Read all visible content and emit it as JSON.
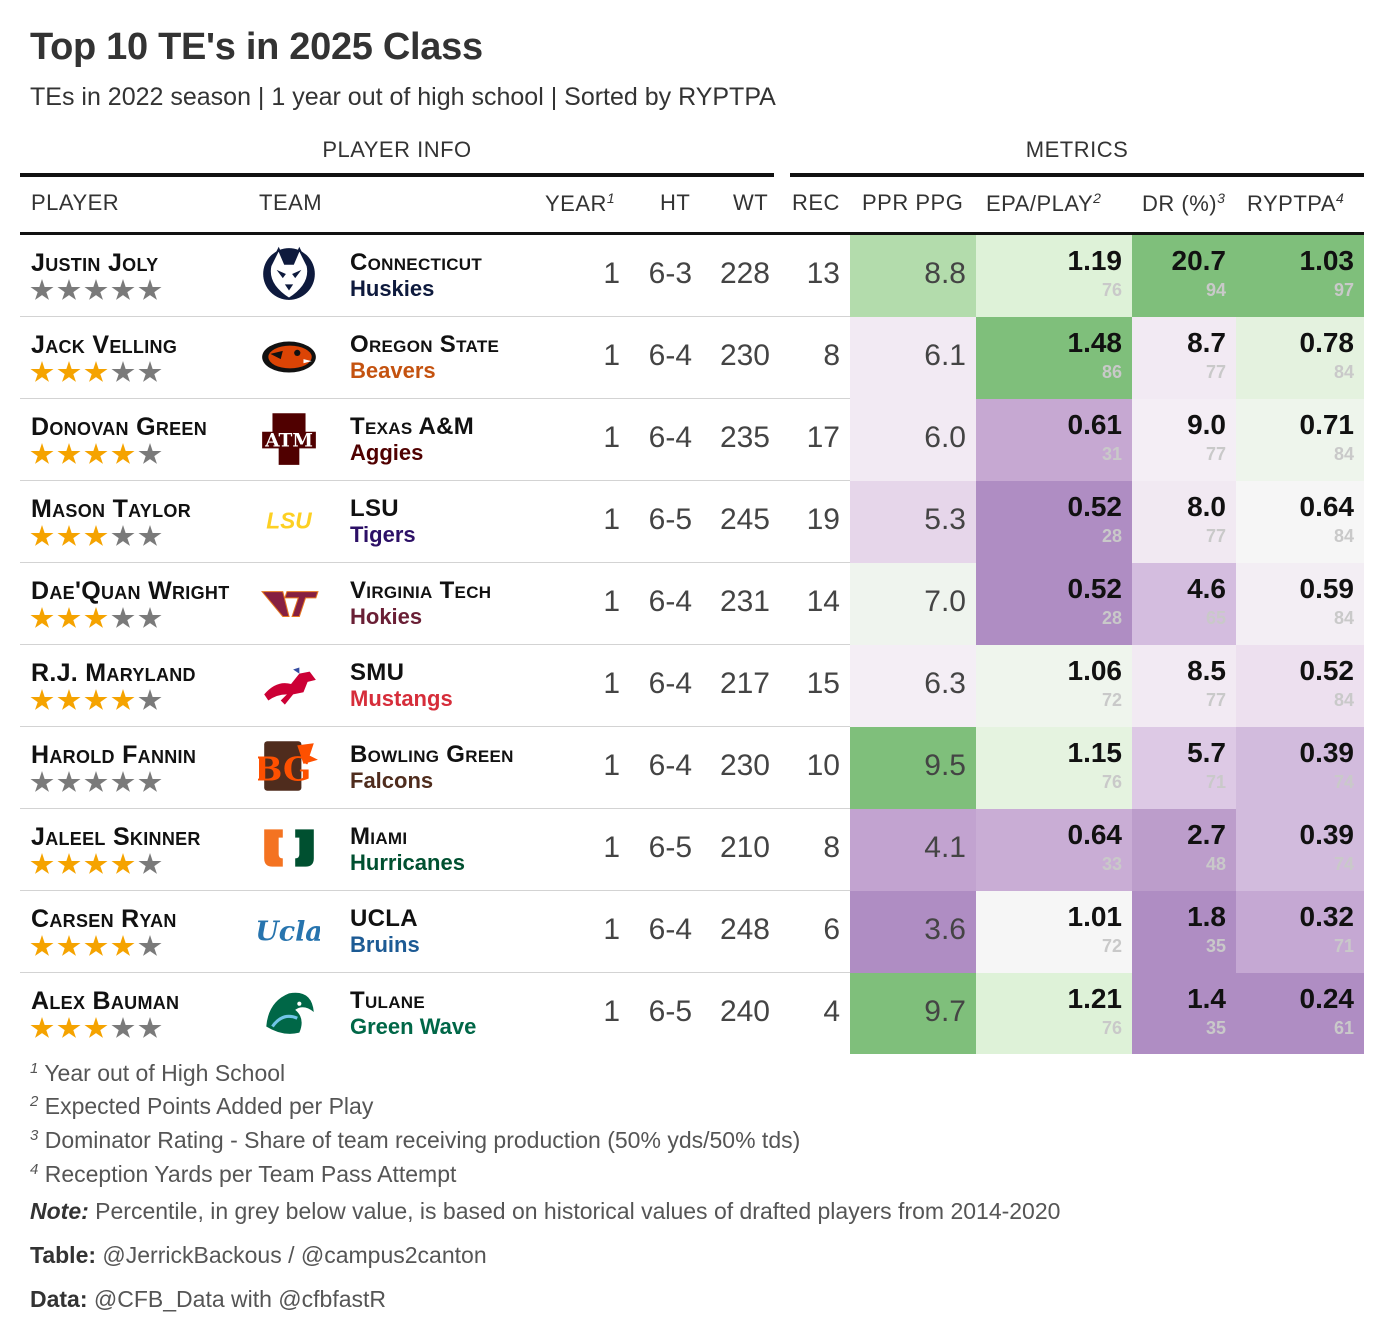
{
  "title": "Top 10 TE's in 2025 Class",
  "subtitle": "TEs in 2022 season | 1 year out of high school | Sorted by RYPTPA",
  "spanners": {
    "player_info": "PLAYER INFO",
    "metrics": "METRICS"
  },
  "columns": {
    "player": "PLAYER",
    "team": "TEAM",
    "year": "YEAR",
    "year_note": "1",
    "ht": "HT",
    "wt": "WT",
    "rec": "REC",
    "ppr": "PPR PPG",
    "epa": "EPA/PLAY",
    "epa_note": "2",
    "dr": "DR (%)",
    "dr_note": "3",
    "ryptpa": "RYPTPA",
    "ryptpa_note": "4"
  },
  "colors": {
    "green_dark": "#7fbf7b",
    "green_mid": "#b3dcac",
    "green_light": "#def2d8",
    "neutral": "#f5f5f5",
    "purple_light": "#ede0ef",
    "purple_mid": "#cfb3da",
    "purple_dark": "#af8dc3",
    "star_on": "#f5a300",
    "star_off": "#7a7a7a"
  },
  "rows": [
    {
      "name": "Justin Joly",
      "stars": 0,
      "school": "Connecticut",
      "mascot": "Huskies",
      "mascot_color": "#0e1a3d",
      "logo": "uconn-husky-logo",
      "year": "1",
      "ht": "6-3",
      "wt": "228",
      "rec": "13",
      "ppr": "8.8",
      "ppr_bg": "#b3dcac",
      "epa": "1.19",
      "epa_pct": "76",
      "epa_bg": "#def2d8",
      "dr": "20.7",
      "dr_pct": "94",
      "dr_bg": "#7fbf7b",
      "ryptpa": "1.03",
      "ryptpa_pct": "97",
      "ryptpa_bg": "#7fbf7b"
    },
    {
      "name": "Jack Velling",
      "stars": 3,
      "school": "Oregon State",
      "mascot": "Beavers",
      "mascot_color": "#c4520f",
      "logo": "oregon-state-beaver-logo",
      "year": "1",
      "ht": "6-4",
      "wt": "230",
      "rec": "8",
      "ppr": "6.1",
      "ppr_bg": "#f2eaf3",
      "epa": "1.48",
      "epa_pct": "86",
      "epa_bg": "#7fbf7b",
      "dr": "8.7",
      "dr_pct": "77",
      "dr_bg": "#f2eaf3",
      "ryptpa": "0.78",
      "ryptpa_pct": "84",
      "ryptpa_bg": "#e4f2df"
    },
    {
      "name": "Donovan Green",
      "stars": 4,
      "school": "Texas A&M",
      "mascot": "Aggies",
      "mascot_color": "#500000",
      "logo": "texas-am-logo",
      "year": "1",
      "ht": "6-4",
      "wt": "235",
      "rec": "17",
      "ppr": "6.0",
      "ppr_bg": "#f2eaf3",
      "epa": "0.61",
      "epa_pct": "31",
      "epa_bg": "#c6a8d2",
      "dr": "9.0",
      "dr_pct": "77",
      "dr_bg": "#f4eef5",
      "ryptpa": "0.71",
      "ryptpa_pct": "84",
      "ryptpa_bg": "#eef5ec"
    },
    {
      "name": "Mason Taylor",
      "stars": 3,
      "school": "LSU",
      "mascot": "Tigers",
      "mascot_color": "#2c1066",
      "logo": "lsu-logo",
      "year": "1",
      "ht": "6-5",
      "wt": "245",
      "rec": "19",
      "ppr": "5.3",
      "ppr_bg": "#e6d6ea",
      "epa": "0.52",
      "epa_pct": "28",
      "epa_bg": "#af8dc3",
      "dr": "8.0",
      "dr_pct": "77",
      "dr_bg": "#f1e9f2",
      "ryptpa": "0.64",
      "ryptpa_pct": "84",
      "ryptpa_bg": "#f6f6f6"
    },
    {
      "name": "Dae'Quan Wright",
      "stars": 3,
      "school": "Virginia Tech",
      "mascot": "Hokies",
      "mascot_color": "#6a1f35",
      "logo": "virginia-tech-logo",
      "year": "1",
      "ht": "6-4",
      "wt": "231",
      "rec": "14",
      "ppr": "7.0",
      "ppr_bg": "#eff4ee",
      "epa": "0.52",
      "epa_pct": "28",
      "epa_bg": "#af8dc3",
      "dr": "4.6",
      "dr_pct": "65",
      "dr_bg": "#d4bddf",
      "ryptpa": "0.59",
      "ryptpa_pct": "84",
      "ryptpa_bg": "#f3eef4"
    },
    {
      "name": "R.J. Maryland",
      "stars": 4,
      "school": "SMU",
      "mascot": "Mustangs",
      "mascot_color": "#d62d3a",
      "logo": "smu-mustang-logo",
      "year": "1",
      "ht": "6-4",
      "wt": "217",
      "rec": "15",
      "ppr": "6.3",
      "ppr_bg": "#f4eef5",
      "epa": "1.06",
      "epa_pct": "72",
      "epa_bg": "#eff5ed",
      "dr": "8.5",
      "dr_pct": "77",
      "dr_bg": "#f2eaf3",
      "ryptpa": "0.52",
      "ryptpa_pct": "84",
      "ryptpa_bg": "#ede0ef"
    },
    {
      "name": "Harold Fannin",
      "stars": 0,
      "school": "Bowling Green",
      "mascot": "Falcons",
      "mascot_color": "#4f2c1d",
      "logo": "bowling-green-logo",
      "year": "1",
      "ht": "6-4",
      "wt": "230",
      "rec": "10",
      "ppr": "9.5",
      "ppr_bg": "#7fbf7b",
      "epa": "1.15",
      "epa_pct": "76",
      "epa_bg": "#e5f3e0",
      "dr": "5.7",
      "dr_pct": "71",
      "dr_bg": "#ddc9e5",
      "ryptpa": "0.39",
      "ryptpa_pct": "74",
      "ryptpa_bg": "#d2bbdd"
    },
    {
      "name": "Jaleel Skinner",
      "stars": 4,
      "school": "Miami",
      "mascot": "Hurricanes",
      "mascot_color": "#005030",
      "logo": "miami-u-logo",
      "year": "1",
      "ht": "6-5",
      "wt": "210",
      "rec": "8",
      "ppr": "4.1",
      "ppr_bg": "#c2a3d0",
      "epa": "0.64",
      "epa_pct": "33",
      "epa_bg": "#c9add5",
      "dr": "2.7",
      "dr_pct": "48",
      "dr_bg": "#bc9dcb",
      "ryptpa": "0.39",
      "ryptpa_pct": "74",
      "ryptpa_bg": "#d2bbdd"
    },
    {
      "name": "Carsen Ryan",
      "stars": 4,
      "school": "UCLA",
      "mascot": "Bruins",
      "mascot_color": "#1c5a94",
      "logo": "ucla-script-logo",
      "year": "1",
      "ht": "6-4",
      "wt": "248",
      "rec": "6",
      "ppr": "3.6",
      "ppr_bg": "#af8dc3",
      "epa": "1.01",
      "epa_pct": "72",
      "epa_bg": "#f6f6f6",
      "dr": "1.8",
      "dr_pct": "35",
      "dr_bg": "#af8dc3",
      "ryptpa": "0.32",
      "ryptpa_pct": "71",
      "ryptpa_bg": "#c5a8d3"
    },
    {
      "name": "Alex Bauman",
      "stars": 3,
      "school": "Tulane",
      "mascot": "Green Wave",
      "mascot_color": "#006747",
      "logo": "tulane-wave-logo",
      "year": "1",
      "ht": "6-5",
      "wt": "240",
      "rec": "4",
      "ppr": "9.7",
      "ppr_bg": "#7fbf7b",
      "epa": "1.21",
      "epa_pct": "76",
      "epa_bg": "#def2d8",
      "dr": "1.4",
      "dr_pct": "35",
      "dr_bg": "#af8dc3",
      "ryptpa": "0.24",
      "ryptpa_pct": "61",
      "ryptpa_bg": "#af8dc3"
    }
  ],
  "footnotes": [
    {
      "mark": "1",
      "text": "Year out of High School"
    },
    {
      "mark": "2",
      "text": "Expected Points Added per Play"
    },
    {
      "mark": "3",
      "text": "Dominator Rating - Share of team receiving production (50% yds/50% tds)"
    },
    {
      "mark": "4",
      "text": "Reception Yards per Team Pass Attempt"
    }
  ],
  "note": {
    "label": "Note:",
    "text": "Percentile, in grey below value, is based on historical values of drafted players from 2014-2020"
  },
  "credits": {
    "table_label": "Table:",
    "table_text": "@JerrickBackous / @campus2canton",
    "data_label": "Data:",
    "data_text": "@CFB_Data with @cfbfastR"
  }
}
